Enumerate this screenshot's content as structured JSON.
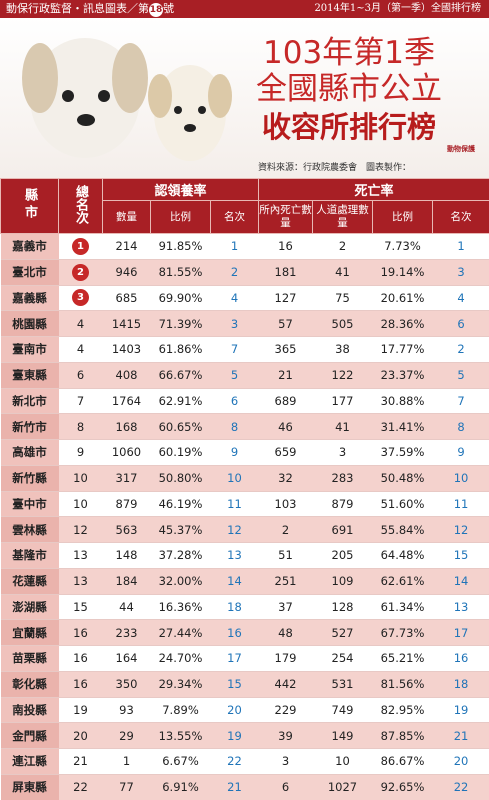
{
  "header": {
    "series": "動保行政監督・訊息圖表／第",
    "issue": "18",
    "suffix": "號",
    "period": "2014年1~3月（第一季）全國排行榜"
  },
  "title": [
    "103年第1季",
    "全國縣市公立",
    "收容所排行榜"
  ],
  "source": "資料來源：行政院農委會",
  "credit": "圖表製作：",
  "logo": "動物保護",
  "table": {
    "county": "縣市",
    "total_rank": "總名次",
    "groups": [
      "認領養率",
      "死亡率"
    ],
    "subheaders": [
      "數量",
      "比例",
      "名次",
      "所內死亡數量",
      "人道處理數量",
      "比例",
      "名次"
    ],
    "rows": [
      [
        "嘉義市",
        "1",
        "214",
        "91.85%",
        "1",
        "16",
        "2",
        "7.73%",
        "1"
      ],
      [
        "臺北市",
        "2",
        "946",
        "81.55%",
        "2",
        "181",
        "41",
        "19.14%",
        "3"
      ],
      [
        "嘉義縣",
        "3",
        "685",
        "69.90%",
        "4",
        "127",
        "75",
        "20.61%",
        "4"
      ],
      [
        "桃園縣",
        "4",
        "1415",
        "71.39%",
        "3",
        "57",
        "505",
        "28.36%",
        "6"
      ],
      [
        "臺南市",
        "4",
        "1403",
        "61.86%",
        "7",
        "365",
        "38",
        "17.77%",
        "2"
      ],
      [
        "臺東縣",
        "6",
        "408",
        "66.67%",
        "5",
        "21",
        "122",
        "23.37%",
        "5"
      ],
      [
        "新北市",
        "7",
        "1764",
        "62.91%",
        "6",
        "689",
        "177",
        "30.88%",
        "7"
      ],
      [
        "新竹市",
        "8",
        "168",
        "60.65%",
        "8",
        "46",
        "41",
        "31.41%",
        "8"
      ],
      [
        "高雄市",
        "9",
        "1060",
        "60.19%",
        "9",
        "659",
        "3",
        "37.59%",
        "9"
      ],
      [
        "新竹縣",
        "10",
        "317",
        "50.80%",
        "10",
        "32",
        "283",
        "50.48%",
        "10"
      ],
      [
        "臺中市",
        "10",
        "879",
        "46.19%",
        "11",
        "103",
        "879",
        "51.60%",
        "11"
      ],
      [
        "雲林縣",
        "12",
        "563",
        "45.37%",
        "12",
        "2",
        "691",
        "55.84%",
        "12"
      ],
      [
        "基隆市",
        "13",
        "148",
        "37.28%",
        "13",
        "51",
        "205",
        "64.48%",
        "15"
      ],
      [
        "花蓮縣",
        "13",
        "184",
        "32.00%",
        "14",
        "251",
        "109",
        "62.61%",
        "14"
      ],
      [
        "澎湖縣",
        "15",
        "44",
        "16.36%",
        "18",
        "37",
        "128",
        "61.34%",
        "13"
      ],
      [
        "宜蘭縣",
        "16",
        "233",
        "27.44%",
        "16",
        "48",
        "527",
        "67.73%",
        "17"
      ],
      [
        "苗栗縣",
        "16",
        "164",
        "24.70%",
        "17",
        "179",
        "254",
        "65.21%",
        "16"
      ],
      [
        "彰化縣",
        "16",
        "350",
        "29.34%",
        "15",
        "442",
        "531",
        "81.56%",
        "18"
      ],
      [
        "南投縣",
        "19",
        "93",
        "7.89%",
        "20",
        "229",
        "749",
        "82.95%",
        "19"
      ],
      [
        "金門縣",
        "20",
        "29",
        "13.55%",
        "19",
        "39",
        "149",
        "87.85%",
        "21"
      ],
      [
        "連江縣",
        "21",
        "1",
        "6.67%",
        "22",
        "3",
        "10",
        "86.67%",
        "20"
      ],
      [
        "屏東縣",
        "22",
        "77",
        "6.91%",
        "21",
        "6",
        "1027",
        "92.65%",
        "22"
      ]
    ]
  }
}
